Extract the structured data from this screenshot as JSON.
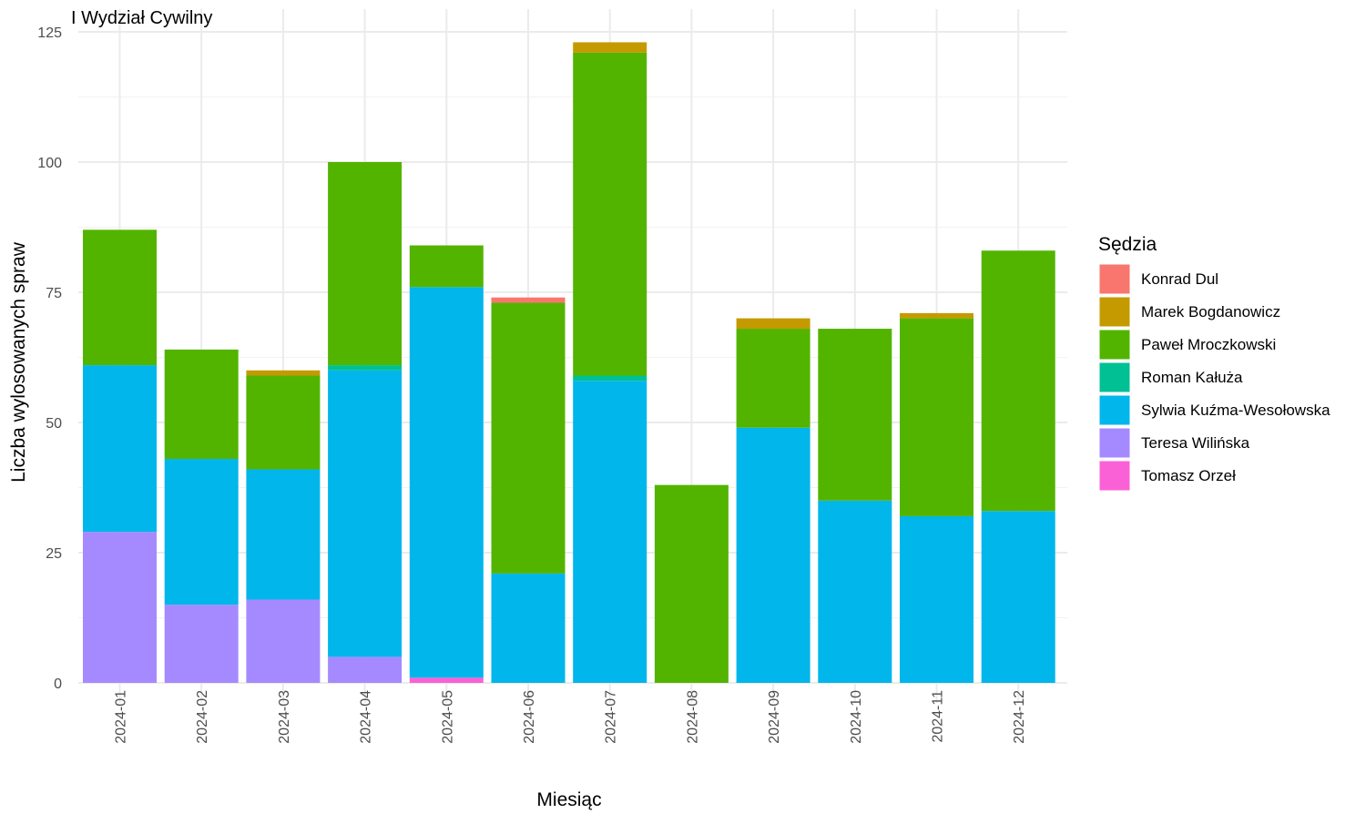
{
  "chart_data": {
    "type": "bar",
    "stacked": true,
    "title": "I Wydział Cywilny",
    "xlabel": "Miesiąc",
    "ylabel": "Liczba wylosowanych spraw",
    "ylim": [
      0,
      125
    ],
    "yticks": [
      0,
      25,
      50,
      75,
      100,
      125
    ],
    "grid": true,
    "legend_title": "Sędzia",
    "legend_position": "right",
    "categories": [
      "2024-01",
      "2024-02",
      "2024-03",
      "2024-04",
      "2024-05",
      "2024-06",
      "2024-07",
      "2024-08",
      "2024-09",
      "2024-10",
      "2024-11",
      "2024-12"
    ],
    "series": [
      {
        "name": "Teresa Wilińska",
        "color": "#A58AFF",
        "values": [
          29,
          15,
          16,
          5,
          0,
          0,
          0,
          0,
          0,
          0,
          0,
          0
        ]
      },
      {
        "name": "Tomasz Orzeł",
        "color": "#FB61D7",
        "values": [
          0,
          0,
          0,
          0,
          1,
          0,
          0,
          0,
          0,
          0,
          0,
          0
        ]
      },
      {
        "name": "Sylwia Kuźma-Wesołowska",
        "color": "#00B6EB",
        "values": [
          32,
          28,
          25,
          55,
          75,
          21,
          58,
          0,
          49,
          35,
          32,
          33
        ]
      },
      {
        "name": "Roman Kałuża",
        "color": "#00C094",
        "values": [
          0,
          0,
          0,
          1,
          0,
          0,
          1,
          0,
          0,
          0,
          0,
          0
        ]
      },
      {
        "name": "Paweł Mroczkowski",
        "color": "#53B400",
        "values": [
          26,
          21,
          18,
          39,
          8,
          52,
          62,
          38,
          19,
          33,
          38,
          50
        ]
      },
      {
        "name": "Marek Bogdanowicz",
        "color": "#C49A00",
        "values": [
          0,
          0,
          1,
          0,
          0,
          0,
          2,
          0,
          2,
          0,
          1,
          0
        ]
      },
      {
        "name": "Konrad Dul",
        "color": "#F8766D",
        "values": [
          0,
          0,
          0,
          0,
          0,
          1,
          0,
          0,
          0,
          0,
          0,
          0
        ]
      }
    ],
    "legend_order": [
      "Konrad Dul",
      "Marek Bogdanowicz",
      "Paweł Mroczkowski",
      "Roman Kałuża",
      "Sylwia Kuźma-Wesołowska",
      "Teresa Wilińska",
      "Tomasz Orzeł"
    ]
  }
}
